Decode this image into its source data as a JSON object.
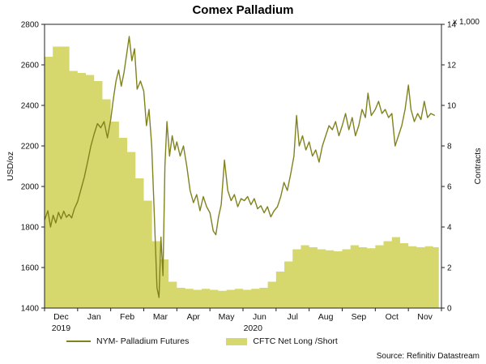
{
  "chart_data": {
    "type": "line",
    "title": "Comex Palladium",
    "source": "Source: Refinitiv Datastream",
    "left_axis": {
      "label": "USD/oz",
      "min": 1400,
      "max": 2800,
      "tick_step": 200
    },
    "right_axis": {
      "label": "Contracts",
      "unit_label": "x 1,000",
      "min": 0,
      "max": 14,
      "tick_step": 2
    },
    "x_axis": {
      "months": [
        "Dec",
        "Jan",
        "Feb",
        "Mar",
        "Apr",
        "May",
        "Jun",
        "Jul",
        "Aug",
        "Sep",
        "Oct",
        "Nov"
      ],
      "years": [
        {
          "label": "2019",
          "center_month": 0.5
        },
        {
          "label": "2020",
          "center_month": 6.3
        }
      ]
    },
    "series": [
      {
        "name": "NYM- Palladium Futures",
        "type": "line",
        "axis": "left",
        "color": "#80821e",
        "x": [
          0.0,
          0.1,
          0.18,
          0.26,
          0.34,
          0.42,
          0.5,
          0.58,
          0.66,
          0.74,
          0.82,
          0.9,
          1.0,
          1.1,
          1.2,
          1.3,
          1.4,
          1.5,
          1.6,
          1.7,
          1.8,
          1.9,
          2.0,
          2.08,
          2.16,
          2.24,
          2.32,
          2.4,
          2.48,
          2.56,
          2.64,
          2.72,
          2.8,
          2.9,
          3.0,
          3.08,
          3.16,
          3.24,
          3.32,
          3.4,
          3.46,
          3.52,
          3.58,
          3.64,
          3.7,
          3.78,
          3.86,
          3.94,
          4.0,
          4.1,
          4.2,
          4.3,
          4.4,
          4.5,
          4.6,
          4.7,
          4.8,
          4.9,
          5.0,
          5.1,
          5.18,
          5.26,
          5.34,
          5.44,
          5.54,
          5.64,
          5.74,
          5.84,
          5.94,
          6.04,
          6.14,
          6.24,
          6.34,
          6.44,
          6.54,
          6.64,
          6.74,
          6.84,
          6.94,
          7.04,
          7.14,
          7.24,
          7.34,
          7.44,
          7.54,
          7.62,
          7.7,
          7.8,
          7.9,
          8.0,
          8.1,
          8.2,
          8.3,
          8.4,
          8.5,
          8.6,
          8.7,
          8.8,
          8.9,
          9.0,
          9.1,
          9.2,
          9.3,
          9.4,
          9.5,
          9.6,
          9.7,
          9.78,
          9.88,
          10.0,
          10.1,
          10.2,
          10.3,
          10.4,
          10.5,
          10.6,
          10.7,
          10.8,
          10.9,
          11.0,
          11.08,
          11.18,
          11.28,
          11.38,
          11.48,
          11.58,
          11.68,
          11.8
        ],
        "values": [
          1835,
          1880,
          1800,
          1858,
          1820,
          1872,
          1840,
          1878,
          1848,
          1862,
          1845,
          1890,
          1925,
          1985,
          2045,
          2120,
          2200,
          2260,
          2310,
          2290,
          2320,
          2240,
          2330,
          2430,
          2520,
          2575,
          2495,
          2560,
          2650,
          2740,
          2620,
          2680,
          2480,
          2520,
          2470,
          2300,
          2380,
          2200,
          1850,
          1500,
          1452,
          1750,
          1560,
          2100,
          2320,
          2150,
          2250,
          2180,
          2220,
          2150,
          2200,
          2100,
          1980,
          1920,
          1960,
          1880,
          1950,
          1900,
          1870,
          1780,
          1762,
          1850,
          1910,
          2130,
          1980,
          1930,
          1960,
          1900,
          1940,
          1930,
          1950,
          1910,
          1940,
          1890,
          1905,
          1870,
          1900,
          1850,
          1880,
          1900,
          1950,
          2020,
          1980,
          2060,
          2150,
          2350,
          2200,
          2250,
          2180,
          2220,
          2150,
          2180,
          2120,
          2200,
          2250,
          2300,
          2280,
          2320,
          2250,
          2300,
          2360,
          2280,
          2340,
          2250,
          2300,
          2380,
          2340,
          2460,
          2350,
          2380,
          2420,
          2360,
          2380,
          2340,
          2360,
          2200,
          2250,
          2300,
          2380,
          2500,
          2380,
          2320,
          2360,
          2330,
          2420,
          2340,
          2360,
          2350
        ]
      },
      {
        "name": "CFTC Net Long /Short",
        "type": "area",
        "axis": "right",
        "color": "#d6d86e",
        "x": [
          0.0,
          0.25,
          0.5,
          0.75,
          1.0,
          1.25,
          1.5,
          1.75,
          2.0,
          2.25,
          2.5,
          2.75,
          3.0,
          3.25,
          3.5,
          3.75,
          4.0,
          4.25,
          4.5,
          4.75,
          5.0,
          5.25,
          5.5,
          5.75,
          6.0,
          6.25,
          6.5,
          6.75,
          7.0,
          7.25,
          7.5,
          7.75,
          8.0,
          8.25,
          8.5,
          8.75,
          9.0,
          9.25,
          9.5,
          9.75,
          10.0,
          10.25,
          10.5,
          10.75,
          11.0,
          11.25,
          11.5,
          11.75
        ],
        "values": [
          12.4,
          12.9,
          12.9,
          11.7,
          11.6,
          11.5,
          11.2,
          10.3,
          9.2,
          8.4,
          7.7,
          6.4,
          5.3,
          3.3,
          2.4,
          1.3,
          1.0,
          0.95,
          0.9,
          0.95,
          0.9,
          0.85,
          0.9,
          0.95,
          0.9,
          0.95,
          1.0,
          1.3,
          1.8,
          2.3,
          2.9,
          3.1,
          3.0,
          2.9,
          2.85,
          2.8,
          2.9,
          3.1,
          3.0,
          2.95,
          3.1,
          3.3,
          3.5,
          3.2,
          3.05,
          3.0,
          3.05,
          3.0
        ],
        "x_end": 11.92
      }
    ]
  }
}
